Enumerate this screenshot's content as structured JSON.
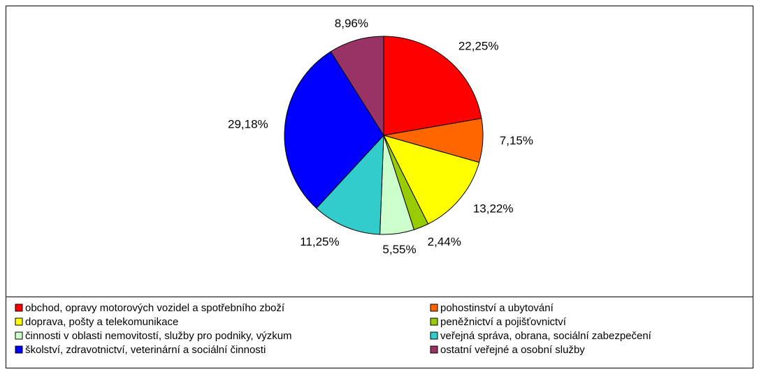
{
  "chart_data": {
    "type": "pie",
    "categories": [
      "obchod, opravy motorových vozidel a spotřebního zboží",
      "pohostinství a ubytování",
      "doprava, pošty a telekomunikace",
      "peněžnictví a pojišťovnictví",
      "činnosti v oblasti nemovitostí, služby pro podniky, výzkum",
      "veřejná správa, obrana, sociální zabezpečení",
      "školství, zdravotnictví, veterinární a sociální činnosti",
      "ostatní veřejné a osobní služby"
    ],
    "values": [
      22.25,
      7.15,
      13.22,
      2.44,
      5.55,
      11.25,
      29.18,
      8.96
    ],
    "value_labels": [
      "22,25%",
      "7,15%",
      "13,22%",
      "2,44%",
      "5,55%",
      "11,25%",
      "29,18%",
      "8,96%"
    ],
    "colors": [
      "#ff0000",
      "#ff6600",
      "#ffff00",
      "#99cc00",
      "#ccffcc",
      "#33cccc",
      "#0000ff",
      "#993366"
    ]
  }
}
